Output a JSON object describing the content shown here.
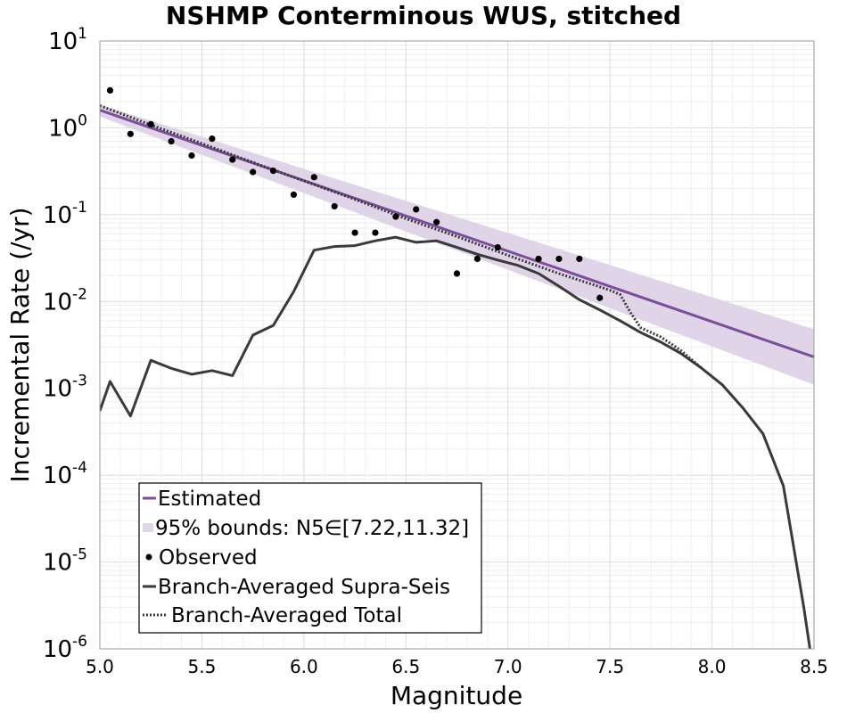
{
  "chart_data": {
    "type": "line",
    "title": "NSHMP Conterminous WUS, stitched",
    "xlabel": "Magnitude",
    "ylabel": "Incremental Rate (/yr)",
    "xlim": [
      5.0,
      8.5
    ],
    "ylim": [
      1e-06,
      10
    ],
    "yscale": "log",
    "grid": true,
    "legend_position": "bottom-left",
    "x_ticks": [
      "5.0",
      "5.5",
      "6.0",
      "6.5",
      "7.0",
      "7.5",
      "8.0",
      "8.5"
    ],
    "y_ticks": [
      {
        "base": "10",
        "exp": "1"
      },
      {
        "base": "10",
        "exp": "0"
      },
      {
        "base": "10",
        "exp": "-1"
      },
      {
        "base": "10",
        "exp": "-2"
      },
      {
        "base": "10",
        "exp": "-3"
      },
      {
        "base": "10",
        "exp": "-4"
      },
      {
        "base": "10",
        "exp": "-5"
      },
      {
        "base": "10",
        "exp": "-6"
      }
    ],
    "colors": {
      "estimated": "#7a4e98",
      "bounds": "#e0d4e8",
      "observed": "#000000",
      "supra": "#3a3a3a",
      "total": "#3a3a3a"
    },
    "legend": {
      "estimated": "Estimated",
      "bounds": "95% bounds: N5∈[7.22,11.32]",
      "observed": "Observed",
      "supra": "Branch-Averaged Supra-Seis",
      "total": "Branch-Averaged Total"
    },
    "series": {
      "estimated": {
        "x": [
          5.0,
          8.5
        ],
        "y": [
          1.6,
          0.0023
        ]
      },
      "bounds": {
        "x": [
          5.0,
          8.5
        ],
        "upper": [
          1.85,
          0.0048
        ],
        "lower": [
          1.35,
          0.0011
        ]
      },
      "observed": {
        "x": [
          5.05,
          5.15,
          5.25,
          5.35,
          5.45,
          5.55,
          5.65,
          5.75,
          5.85,
          5.95,
          6.05,
          6.15,
          6.25,
          6.35,
          6.45,
          6.55,
          6.65,
          6.75,
          6.85,
          6.95,
          7.15,
          7.25,
          7.35,
          7.45
        ],
        "y": [
          2.7,
          0.85,
          1.1,
          0.7,
          0.48,
          0.75,
          0.43,
          0.31,
          0.32,
          0.17,
          0.27,
          0.125,
          0.062,
          0.062,
          0.095,
          0.115,
          0.082,
          0.021,
          0.031,
          0.042,
          0.031,
          0.031,
          0.031,
          0.011
        ]
      },
      "supra": {
        "x": [
          5.0,
          5.05,
          5.15,
          5.25,
          5.35,
          5.45,
          5.55,
          5.65,
          5.75,
          5.85,
          5.95,
          6.05,
          6.15,
          6.25,
          6.35,
          6.45,
          6.55,
          6.65,
          6.75,
          6.85,
          6.95,
          7.05,
          7.15,
          7.25,
          7.35,
          7.45,
          7.55,
          7.65,
          7.75,
          7.85,
          7.95,
          8.05,
          8.15,
          8.25,
          8.35,
          8.45,
          8.48
        ],
        "y": [
          0.00055,
          0.0012,
          0.00048,
          0.0021,
          0.0017,
          0.00145,
          0.0016,
          0.0014,
          0.0041,
          0.0053,
          0.013,
          0.039,
          0.043,
          0.044,
          0.05,
          0.055,
          0.048,
          0.05,
          0.042,
          0.035,
          0.03,
          0.026,
          0.021,
          0.015,
          0.0105,
          0.008,
          0.006,
          0.0044,
          0.0034,
          0.0025,
          0.0017,
          0.0011,
          0.0006,
          0.0003,
          7.5e-05,
          3e-06,
          1e-06
        ]
      },
      "total": {
        "x": [
          5.0,
          5.25,
          5.5,
          5.75,
          6.0,
          6.25,
          6.5,
          6.75,
          7.0,
          7.25,
          7.5,
          7.55,
          7.6,
          7.65,
          7.75,
          7.85,
          7.95
        ],
        "y": [
          1.8,
          1.08,
          0.66,
          0.4,
          0.245,
          0.15,
          0.09,
          0.056,
          0.034,
          0.021,
          0.0135,
          0.012,
          0.0075,
          0.005,
          0.0039,
          0.0027,
          0.0017
        ]
      }
    }
  }
}
